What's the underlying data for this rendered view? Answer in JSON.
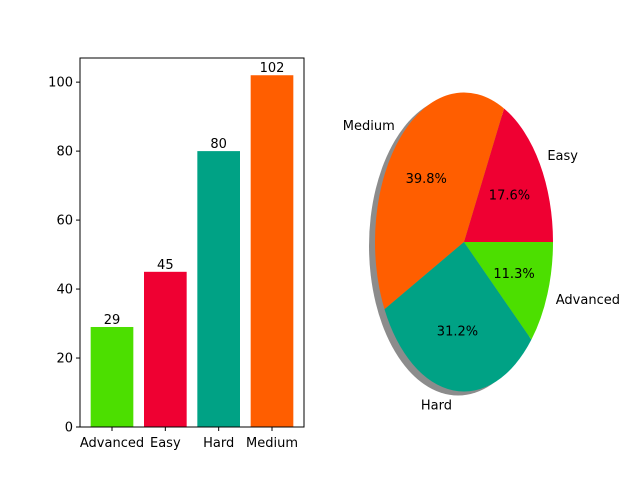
{
  "chart_data": [
    {
      "type": "bar",
      "categories": [
        "Advanced",
        "Easy",
        "Hard",
        "Medium"
      ],
      "values": [
        29,
        45,
        80,
        102
      ],
      "value_labels": [
        "29",
        "45",
        "80",
        "102"
      ],
      "colors": [
        "#4cdf00",
        "#ef0032",
        "#00a285",
        "#ff5e00"
      ],
      "yticks": [
        0,
        20,
        40,
        60,
        80,
        100
      ],
      "ytick_labels": [
        "0",
        "20",
        "40",
        "60",
        "80",
        "100"
      ],
      "ylim": [
        0,
        107
      ],
      "title": "",
      "xlabel": "",
      "ylabel": "",
      "grid": false
    },
    {
      "type": "pie",
      "labels": [
        "Easy",
        "Medium",
        "Hard",
        "Advanced"
      ],
      "values": [
        45,
        102,
        80,
        29
      ],
      "percent_labels": [
        "17.6%",
        "39.8%",
        "31.2%",
        "11.3%"
      ],
      "colors": [
        "#ef0032",
        "#ff5e00",
        "#00a285",
        "#4cdf00"
      ],
      "shadow": true,
      "start_angle": 0,
      "direction": "counterclockwise"
    }
  ]
}
